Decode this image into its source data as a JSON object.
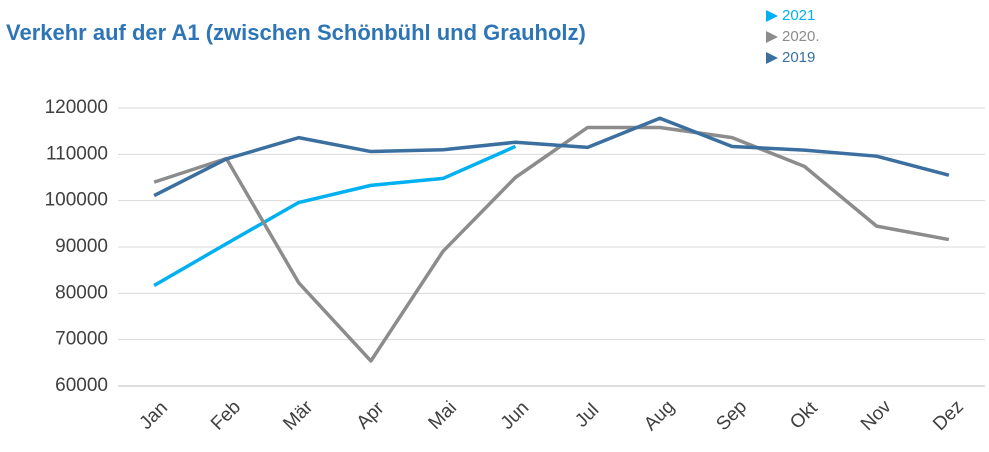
{
  "chart_data": {
    "type": "line",
    "title": "Verkehr auf der A1 (zwischen Schönbühl und Grauholz)",
    "categories": [
      "Jan",
      "Feb",
      "Mär",
      "Apr",
      "Mai",
      "Jun",
      "Jul",
      "Aug",
      "Sep",
      "Okt",
      "Nov",
      "Dez"
    ],
    "series": [
      {
        "name": "2021",
        "color": "#00b0f0",
        "values": [
          81700,
          90700,
          99600,
          103300,
          104800,
          111700,
          null,
          null,
          null,
          null,
          null,
          null
        ]
      },
      {
        "name": "2020.",
        "color": "#8c8c8c",
        "values": [
          104000,
          109100,
          82300,
          65400,
          89100,
          105000,
          115800,
          115800,
          113600,
          107400,
          94500,
          91600
        ]
      },
      {
        "name": "2019",
        "color": "#3a6fa0",
        "values": [
          101100,
          109000,
          113600,
          110600,
          111000,
          112600,
          111500,
          117800,
          111700,
          110900,
          109600,
          105500
        ]
      }
    ],
    "ylim": [
      60000,
      120000
    ],
    "yticks": [
      60000,
      70000,
      80000,
      90000,
      100000,
      110000,
      120000
    ],
    "grid": true
  }
}
